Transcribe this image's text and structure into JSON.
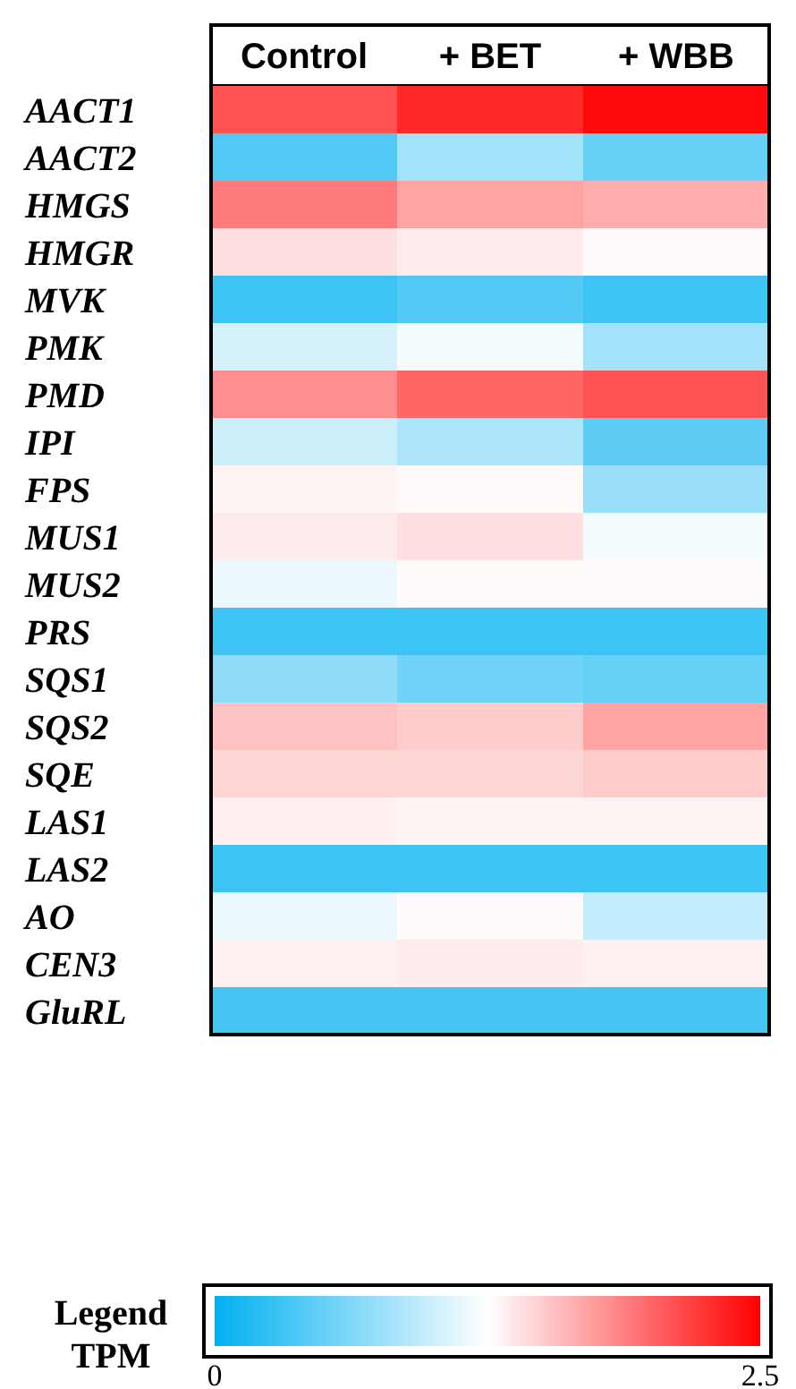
{
  "chart_data": {
    "type": "heatmap",
    "categories": [
      "Control",
      "+ BET",
      "+ WBB"
    ],
    "y_categories": [
      "AACT1",
      "AACT2",
      "HMGS",
      "HMGR",
      "MVK",
      "PMK",
      "PMD",
      "IPI",
      "FPS",
      "MUS1",
      "MUS2",
      "PRS",
      "SQS1",
      "SQS2",
      "SQE",
      "LAS1",
      "LAS2",
      "AO",
      "CEN3",
      "GluRL"
    ],
    "cells": [
      [
        2.1,
        2.3,
        2.45
      ],
      [
        0.4,
        0.8,
        0.5
      ],
      [
        1.9,
        1.7,
        1.65
      ],
      [
        1.4,
        1.35,
        1.27
      ],
      [
        0.3,
        0.4,
        0.3
      ],
      [
        1.05,
        1.2,
        0.8
      ],
      [
        1.8,
        2.0,
        2.1
      ],
      [
        1.0,
        0.85,
        0.45
      ],
      [
        1.3,
        1.27,
        0.75
      ],
      [
        1.35,
        1.4,
        1.2
      ],
      [
        1.15,
        1.27,
        1.27
      ],
      [
        0.3,
        0.3,
        0.3
      ],
      [
        0.7,
        0.55,
        0.5
      ],
      [
        1.55,
        1.5,
        1.7
      ],
      [
        1.45,
        1.45,
        1.5
      ],
      [
        1.33,
        1.3,
        1.3
      ],
      [
        0.3,
        0.3,
        0.3
      ],
      [
        1.15,
        1.27,
        0.95
      ],
      [
        1.32,
        1.35,
        1.32
      ],
      [
        0.35,
        0.35,
        0.35
      ]
    ],
    "clim": [
      0,
      2.5
    ],
    "cticks": [
      0,
      2.5
    ],
    "legend_title": "Legend",
    "clabel": "TPM"
  }
}
